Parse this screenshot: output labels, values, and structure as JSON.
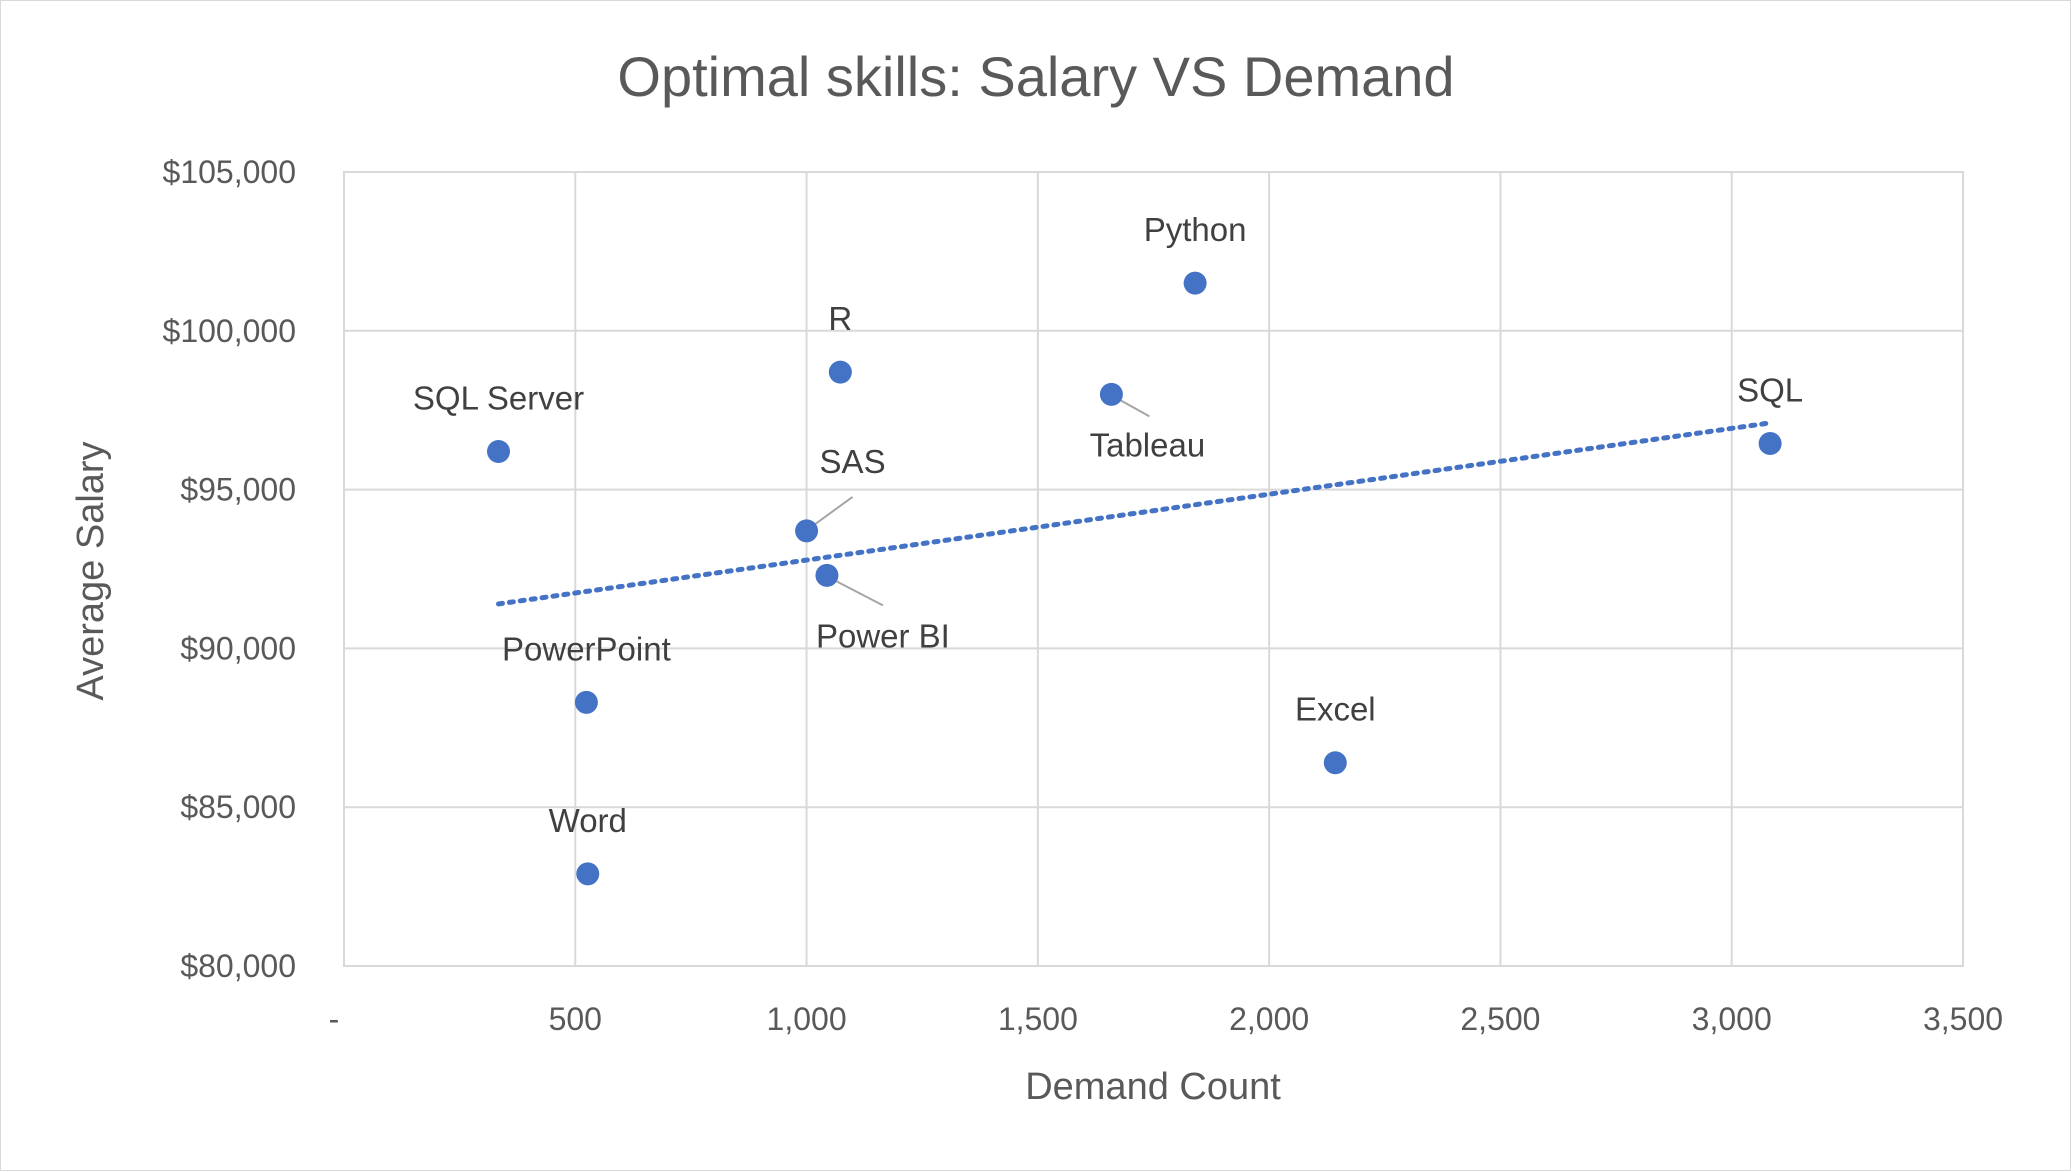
{
  "chart_data": {
    "type": "scatter",
    "title": "Optimal skills: Salary VS Demand",
    "xlabel": "Demand Count",
    "ylabel": "Average Salary",
    "xlim": [
      0,
      3500
    ],
    "ylim": [
      80000,
      105000
    ],
    "x_ticks": [
      0,
      500,
      1000,
      1500,
      2000,
      2500,
      3000,
      3500
    ],
    "x_tick_labels": [
      "-",
      "500",
      "1,000",
      "1,500",
      "2,000",
      "2,500",
      "3,000",
      "3,500"
    ],
    "y_ticks": [
      80000,
      85000,
      90000,
      95000,
      100000,
      105000
    ],
    "y_tick_labels": [
      "$80,000",
      "$85,000",
      "$90,000",
      "$95,000",
      "$100,000",
      "$105,000"
    ],
    "grid": true,
    "marker_color": "#4472c4",
    "points": [
      {
        "label": "SQL Server",
        "x": 334,
        "y": 96200
      },
      {
        "label": "R",
        "x": 1073,
        "y": 98700
      },
      {
        "label": "Python",
        "x": 1840,
        "y": 101500
      },
      {
        "label": "Tableau",
        "x": 1659,
        "y": 98000
      },
      {
        "label": "SQL",
        "x": 3083,
        "y": 96450
      },
      {
        "label": "SAS",
        "x": 1000,
        "y": 93700
      },
      {
        "label": "Power BI",
        "x": 1044,
        "y": 92300
      },
      {
        "label": "PowerPoint",
        "x": 524,
        "y": 88300
      },
      {
        "label": "Excel",
        "x": 2143,
        "y": 86400
      },
      {
        "label": "Word",
        "x": 527,
        "y": 82900
      }
    ],
    "trendline": {
      "type": "linear",
      "style": "dotted",
      "color": "#4472c4",
      "start": {
        "x": 334,
        "y": 91400
      },
      "end": {
        "x": 3083,
        "y": 97100
      }
    }
  }
}
